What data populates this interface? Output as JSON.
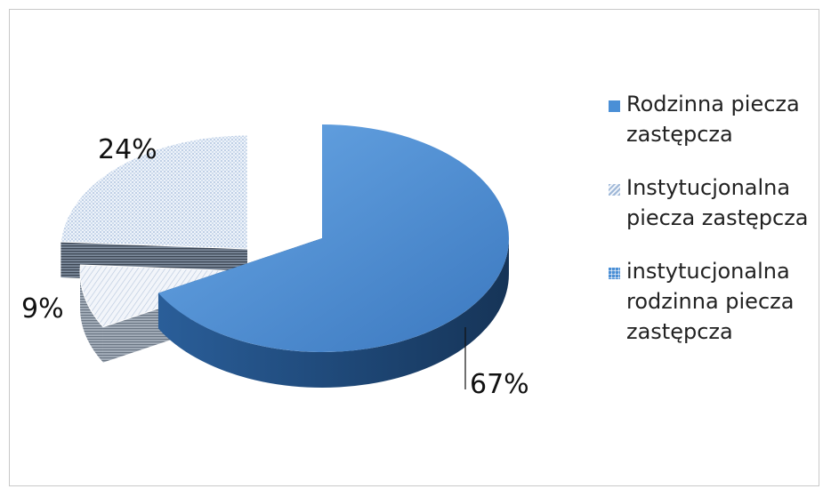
{
  "chart_data": {
    "type": "pie",
    "style": "3d-exploded",
    "slices": [
      {
        "label": "Rodzinna piecza zastępcza",
        "value": 67,
        "value_label": "67%",
        "color": "#4a8fd6",
        "pattern": "solid"
      },
      {
        "label": "Instytucjonalna piecza zastępcza",
        "value": 9,
        "value_label": "9%",
        "color": "#e7eef8",
        "pattern": "hatched-light"
      },
      {
        "label": "instytucjonalna rodzinna piecza zastępcza",
        "value": 24,
        "value_label": "24%",
        "color": "#c9daf0",
        "pattern": "dotted-light"
      }
    ],
    "legend_position": "right"
  }
}
